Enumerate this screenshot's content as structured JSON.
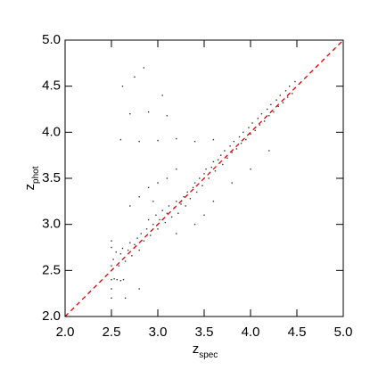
{
  "chart_data": {
    "type": "scatter",
    "xlabel": {
      "main": "z",
      "sub": "spec"
    },
    "ylabel": {
      "main": "z",
      "sub": "phot"
    },
    "xlim": [
      2.0,
      5.0
    ],
    "ylim": [
      2.0,
      5.0
    ],
    "xticks": [
      {
        "value": 2.0,
        "label": "2.0"
      },
      2.5,
      {
        "value": 3.0,
        "label": "3.0"
      },
      3.5,
      {
        "value": 4.0,
        "label": "4.0"
      },
      4.5,
      {
        "value": 5.0,
        "label": "5.0"
      }
    ],
    "yticks": [
      {
        "value": 2.0,
        "label": "2.0"
      },
      2.5,
      {
        "value": 3.0,
        "label": "3.0"
      },
      3.5,
      {
        "value": 4.0,
        "label": "4.0"
      },
      4.5,
      {
        "value": 5.0,
        "label": "5.0"
      }
    ],
    "color": "#333333",
    "diagonal": {
      "color": "#e00000",
      "style": "dashed"
    },
    "x": [
      2.52,
      2.55,
      2.58,
      2.6,
      2.62,
      2.65,
      2.68,
      2.7,
      2.72,
      2.75,
      2.78,
      2.8,
      2.82,
      2.85,
      2.88,
      2.9,
      2.92,
      2.95,
      2.98,
      3.0,
      3.02,
      3.05,
      3.08,
      3.1,
      3.12,
      3.15,
      3.18,
      3.2,
      3.22,
      3.25,
      3.28,
      3.3,
      3.32,
      3.35,
      3.38,
      3.4,
      3.42,
      3.45,
      3.48,
      3.5,
      3.52,
      3.55,
      3.58,
      3.6,
      3.62,
      3.65,
      3.68,
      3.7,
      3.72,
      3.75,
      3.78,
      3.8,
      3.82,
      3.85,
      3.88,
      3.9,
      3.92,
      3.95,
      3.98,
      4.0,
      4.02,
      4.05,
      4.08,
      4.1,
      4.12,
      4.15,
      4.18,
      4.2,
      4.22,
      4.25,
      4.28,
      4.3,
      4.32,
      4.35,
      4.38,
      4.4,
      4.42,
      4.45,
      4.48,
      2.8,
      2.9,
      3.0,
      3.1,
      2.7,
      2.95,
      3.2,
      3.4,
      3.6,
      3.8,
      4.0,
      3.5,
      4.2,
      2.6,
      2.8,
      3.0,
      3.2,
      3.4,
      3.6,
      2.7,
      3.1,
      2.9,
      2.62,
      2.75,
      3.05,
      2.85,
      2.5,
      2.53,
      2.56,
      2.6,
      2.63,
      2.5,
      2.5,
      2.5,
      2.5,
      2.5,
      2.65,
      2.8,
      3.2
    ],
    "y": [
      2.62,
      2.7,
      2.55,
      2.68,
      2.74,
      2.6,
      2.72,
      2.8,
      2.66,
      2.78,
      2.85,
      2.72,
      2.9,
      2.82,
      2.95,
      3.05,
      2.88,
      3.0,
      3.1,
      2.95,
      3.05,
      3.15,
      3.02,
      3.12,
      3.2,
      3.08,
      3.18,
      3.25,
      3.12,
      3.22,
      3.3,
      3.2,
      3.35,
      3.28,
      3.4,
      3.45,
      3.35,
      3.5,
      3.42,
      3.55,
      3.6,
      3.5,
      3.62,
      3.68,
      3.58,
      3.7,
      3.75,
      3.65,
      3.8,
      3.72,
      3.85,
      3.78,
      3.9,
      3.82,
      3.95,
      3.88,
      4.0,
      3.92,
      4.05,
      3.98,
      4.1,
      4.02,
      4.15,
      4.08,
      4.2,
      4.12,
      4.25,
      4.18,
      4.3,
      4.22,
      4.35,
      4.28,
      4.4,
      4.32,
      4.45,
      4.38,
      4.5,
      4.42,
      4.55,
      3.3,
      3.4,
      3.45,
      3.5,
      3.2,
      3.25,
      3.6,
      3.0,
      3.25,
      3.45,
      3.6,
      3.1,
      3.8,
      3.92,
      3.9,
      3.91,
      3.93,
      3.9,
      3.92,
      4.2,
      4.18,
      4.22,
      4.5,
      4.6,
      4.4,
      4.7,
      2.4,
      2.41,
      2.4,
      2.39,
      2.4,
      2.3,
      2.2,
      2.55,
      2.75,
      2.82,
      2.2,
      2.3,
      2.9
    ]
  }
}
